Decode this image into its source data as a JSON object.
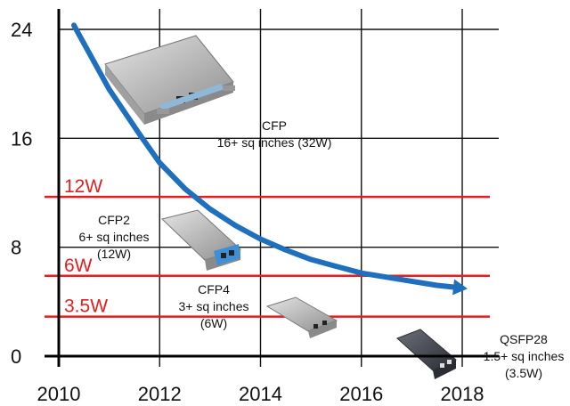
{
  "chart_data": {
    "type": "line",
    "title": "",
    "xlabel": "",
    "ylabel": "",
    "xlim": [
      2010,
      2018
    ],
    "ylim": [
      0,
      24
    ],
    "xticks": [
      2010,
      2012,
      2014,
      2016,
      2018
    ],
    "yticks": [
      0,
      8,
      16,
      24
    ],
    "grid": true,
    "series": [
      {
        "color": "#1f6fbf",
        "x": [
          2010.3,
          2011,
          2011.6,
          2012,
          2012.5,
          2013,
          2013.5,
          2014,
          2014.5,
          2015,
          2015.5,
          2016,
          2016.5,
          2017,
          2017.5,
          2018
        ],
        "y": [
          24.3,
          19.6,
          16.3,
          14.2,
          12.3,
          10.8,
          9.6,
          8.6,
          7.8,
          7.1,
          6.6,
          6.1,
          5.8,
          5.5,
          5.2,
          5.0
        ],
        "arrow_at_end": true
      }
    ],
    "reference_lines": [
      {
        "y": 11.7,
        "label": "12W",
        "color": "#e02020"
      },
      {
        "y": 5.9,
        "label": "6W",
        "color": "#e02020"
      },
      {
        "y": 2.9,
        "label": "3.5W",
        "color": "#e02020"
      }
    ],
    "annotations": [
      {
        "id": "cfp",
        "lines": [
          "CFP",
          "16+ sq inches (32W)"
        ]
      },
      {
        "id": "cfp2",
        "lines": [
          "CFP2",
          "6+ sq inches",
          "(12W)"
        ]
      },
      {
        "id": "cfp4",
        "lines": [
          "CFP4",
          "3+ sq inches",
          "(6W)"
        ]
      },
      {
        "id": "qsfp28",
        "lines": [
          "QSFP28",
          "1.5+ sq inches",
          "(3.5W)"
        ]
      }
    ],
    "module_images": [
      "cfp-module",
      "cfp2-module",
      "cfp4-module",
      "qsfp28-module"
    ]
  }
}
